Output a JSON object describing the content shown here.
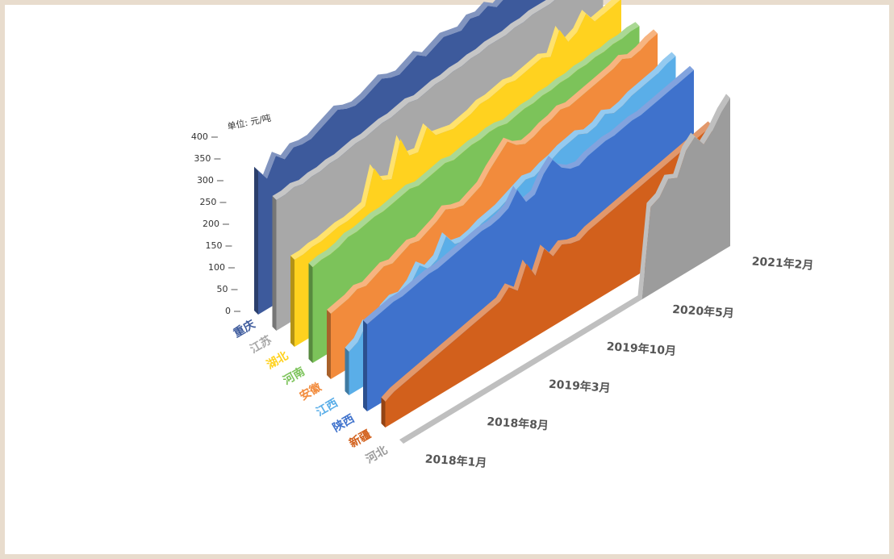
{
  "chart_data": {
    "type": "area3d",
    "y_label": "单位: 元/吨",
    "ylim": [
      0,
      400
    ],
    "yticks": [
      0,
      50,
      100,
      150,
      200,
      250,
      300,
      350,
      400
    ],
    "categories": [
      "2018年1月",
      null,
      null,
      null,
      null,
      null,
      null,
      "2018年8月",
      null,
      null,
      null,
      null,
      null,
      null,
      "2019年3月",
      null,
      null,
      null,
      null,
      null,
      null,
      "2019年10月",
      null,
      null,
      null,
      null,
      null,
      null,
      "2020年5月",
      null,
      null,
      null,
      null,
      null,
      null,
      null,
      null,
      "2021年2月"
    ],
    "series": [
      {
        "name": "重庆",
        "color": "#3d5a9c",
        "values": [
          330,
          300,
          340,
          320,
          335,
          330,
          330,
          340,
          350,
          360,
          350,
          345,
          350,
          360,
          370,
          360,
          355,
          365,
          375,
          360,
          370,
          380,
          375,
          370,
          385,
          380,
          390,
          375,
          385,
          395,
          380,
          390,
          385,
          395,
          380,
          390,
          395,
          400
        ]
      },
      {
        "name": "江苏",
        "color": "#a8a8a8",
        "values": [
          300,
          300,
          305,
          300,
          305,
          305,
          310,
          310,
          315,
          320,
          320,
          325,
          330,
          330,
          335,
          340,
          335,
          340,
          345,
          345,
          350,
          350,
          355,
          355,
          360,
          360,
          360,
          365,
          365,
          370,
          370,
          370,
          375,
          375,
          380,
          380,
          385,
          385
        ]
      },
      {
        "name": "湖北",
        "color": "#ffd21f",
        "values": [
          200,
          200,
          205,
          205,
          210,
          215,
          215,
          220,
          225,
          300,
          260,
          250,
          330,
          280,
          275,
          320,
          290,
          285,
          280,
          285,
          290,
          300,
          300,
          305,
          310,
          305,
          310,
          315,
          320,
          310,
          360,
          320,
          330,
          360,
          330,
          335,
          340,
          345
        ]
      },
      {
        "name": "河南",
        "color": "#7cc35a",
        "values": [
          220,
          225,
          225,
          230,
          240,
          240,
          245,
          250,
          250,
          255,
          260,
          265,
          260,
          265,
          270,
          275,
          270,
          275,
          280,
          280,
          285,
          285,
          280,
          285,
          290,
          290,
          295,
          295,
          300,
          300,
          305,
          305,
          310,
          310,
          315,
          315,
          320,
          320
        ]
      },
      {
        "name": "安徽",
        "color": "#f28b3c",
        "values": [
          150,
          155,
          160,
          170,
          165,
          175,
          185,
          180,
          190,
          200,
          195,
          205,
          215,
          230,
          220,
          215,
          225,
          235,
          260,
          280,
          300,
          280,
          270,
          275,
          285,
          290,
          300,
          295,
          300,
          305,
          310,
          315,
          320,
          330,
          320,
          325,
          335,
          340
        ]
      },
      {
        "name": "江西",
        "color": "#5aaee8",
        "values": [
          100,
          110,
          140,
          120,
          150,
          160,
          155,
          170,
          200,
          180,
          190,
          230,
          200,
          195,
          200,
          210,
          215,
          220,
          230,
          240,
          250,
          245,
          255,
          260,
          270,
          275,
          280,
          270,
          275,
          290,
          280,
          285,
          295,
          300,
          305,
          310,
          320,
          325
        ]
      },
      {
        "name": "陕西",
        "color": "#3f72cc",
        "values": [
          200,
          205,
          210,
          215,
          215,
          220,
          225,
          230,
          230,
          235,
          240,
          245,
          250,
          255,
          255,
          260,
          270,
          300,
          260,
          265,
          300,
          320,
          290,
          275,
          270,
          280,
          285,
          290,
          290,
          295,
          300,
          300,
          305,
          310,
          315,
          320,
          325,
          330
        ]
      },
      {
        "name": "新疆",
        "color": "#d2601c",
        "values": [
          60,
          70,
          75,
          80,
          85,
          90,
          95,
          100,
          105,
          110,
          115,
          120,
          125,
          130,
          150,
          130,
          180,
          140,
          190,
          160,
          175,
          165,
          160,
          170,
          175,
          180,
          185,
          190,
          195,
          200,
          205,
          210,
          215,
          220,
          225,
          230,
          235,
          240
        ]
      },
      {
        "name": "河北",
        "color": "#9c9c9c",
        "values": [
          0,
          0,
          0,
          0,
          0,
          0,
          0,
          0,
          0,
          0,
          0,
          0,
          0,
          0,
          0,
          0,
          0,
          0,
          0,
          0,
          0,
          0,
          0,
          0,
          0,
          0,
          0,
          0,
          200,
          210,
          240,
          230,
          280,
          300,
          270,
          290,
          320,
          340
        ]
      }
    ]
  }
}
